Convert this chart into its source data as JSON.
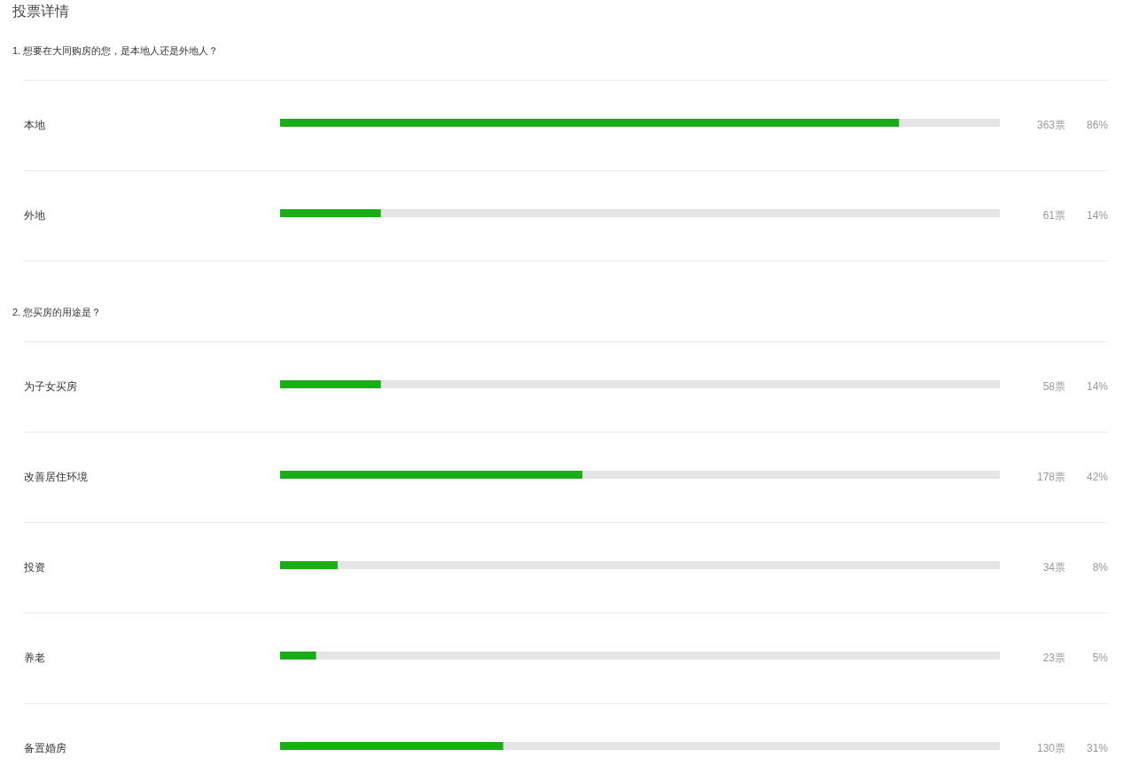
{
  "chart_data": [
    {
      "type": "bar",
      "orientation": "horizontal",
      "title": "投票详情",
      "subtitle": "1. 想要在大同购房的您，是本地人还是外地人？",
      "categories": [
        "本地",
        "外地"
      ],
      "values": [
        86,
        14
      ],
      "color": "#1aad19",
      "xlim": [
        0,
        100
      ],
      "value_labels": [
        "86%",
        "14%"
      ],
      "annotations": [
        "363票",
        "61票"
      ],
      "grid": "y"
    },
    {
      "type": "bar",
      "orientation": "horizontal",
      "title": "2. 您买房的用途是？",
      "categories": [
        "为子女买房",
        "改善居住环境",
        "投资",
        "养老",
        "备置婚房"
      ],
      "values": [
        14,
        42,
        8,
        5,
        31
      ],
      "color": "#1aad19",
      "xlim": [
        0,
        100
      ],
      "value_labels": [
        "14%",
        "42%",
        "8%",
        "5%",
        "31%"
      ],
      "annotations": [
        "58票",
        "178票",
        "34票",
        "23票",
        "130票"
      ],
      "grid": "y"
    }
  ]
}
